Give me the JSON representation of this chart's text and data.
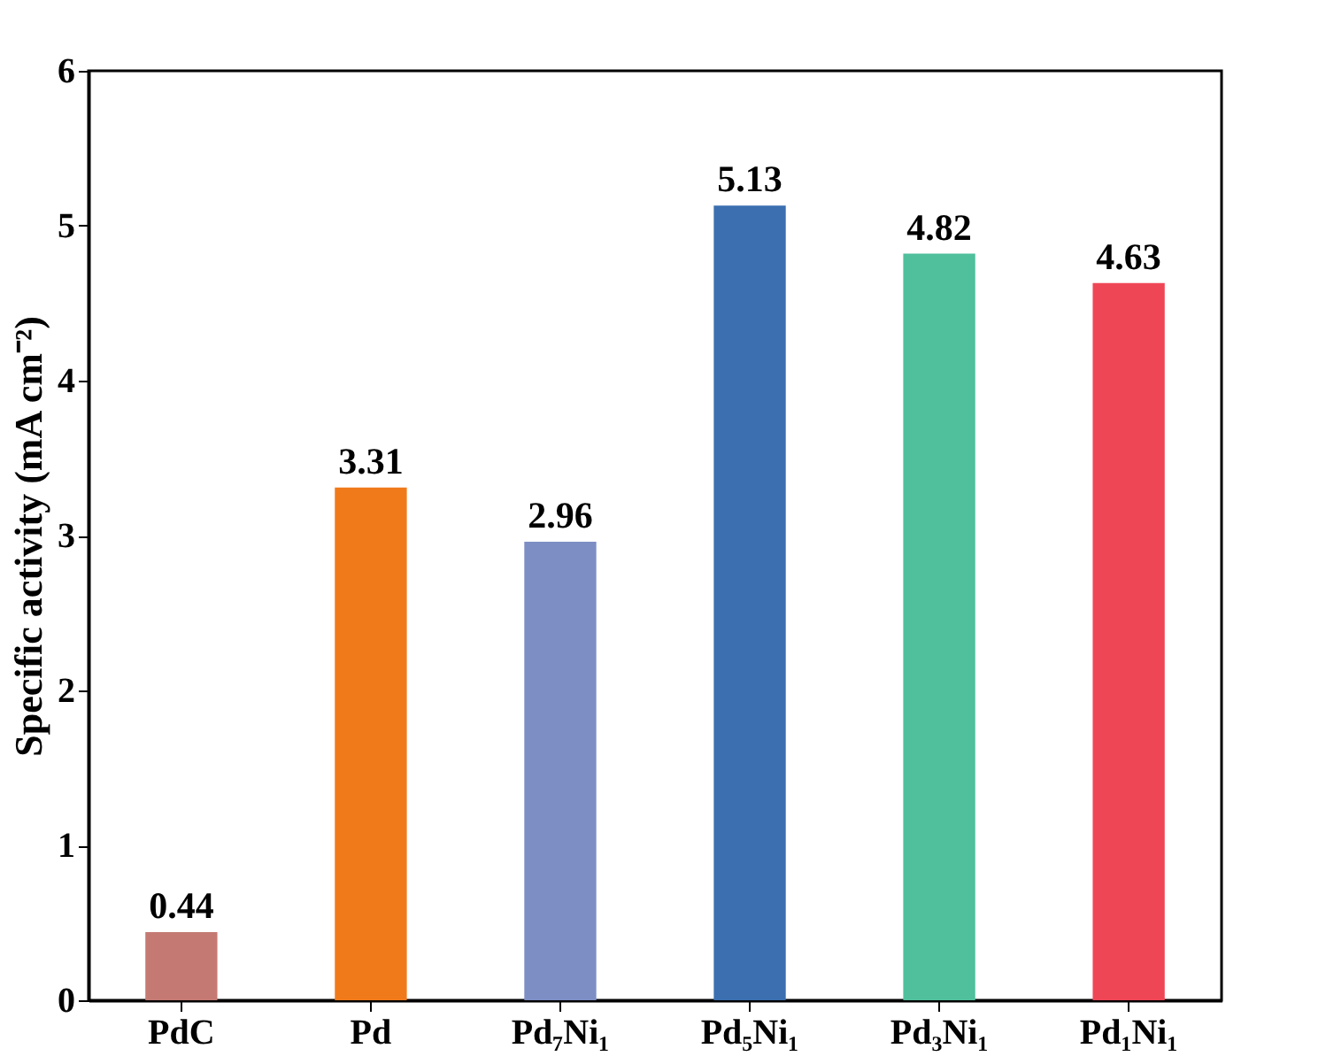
{
  "chart_data": {
    "type": "bar",
    "ylabel": "Specific activity (mA cm⁻²)",
    "categories": [
      "PdC",
      "Pd",
      "Pd₇Ni₁",
      "Pd₅Ni₁",
      "Pd₃Ni₁",
      "Pd₁Ni₁"
    ],
    "values": [
      0.44,
      3.31,
      2.96,
      5.13,
      4.82,
      4.63
    ],
    "colors": [
      "#c47a72",
      "#f07a1a",
      "#7d8ec4",
      "#3b6fb0",
      "#4fbf9c",
      "#ef4656"
    ],
    "ylim": [
      0,
      6
    ],
    "yticks": [
      0,
      1,
      2,
      3,
      4,
      5,
      6
    ],
    "grid": false,
    "data_labels": true
  }
}
